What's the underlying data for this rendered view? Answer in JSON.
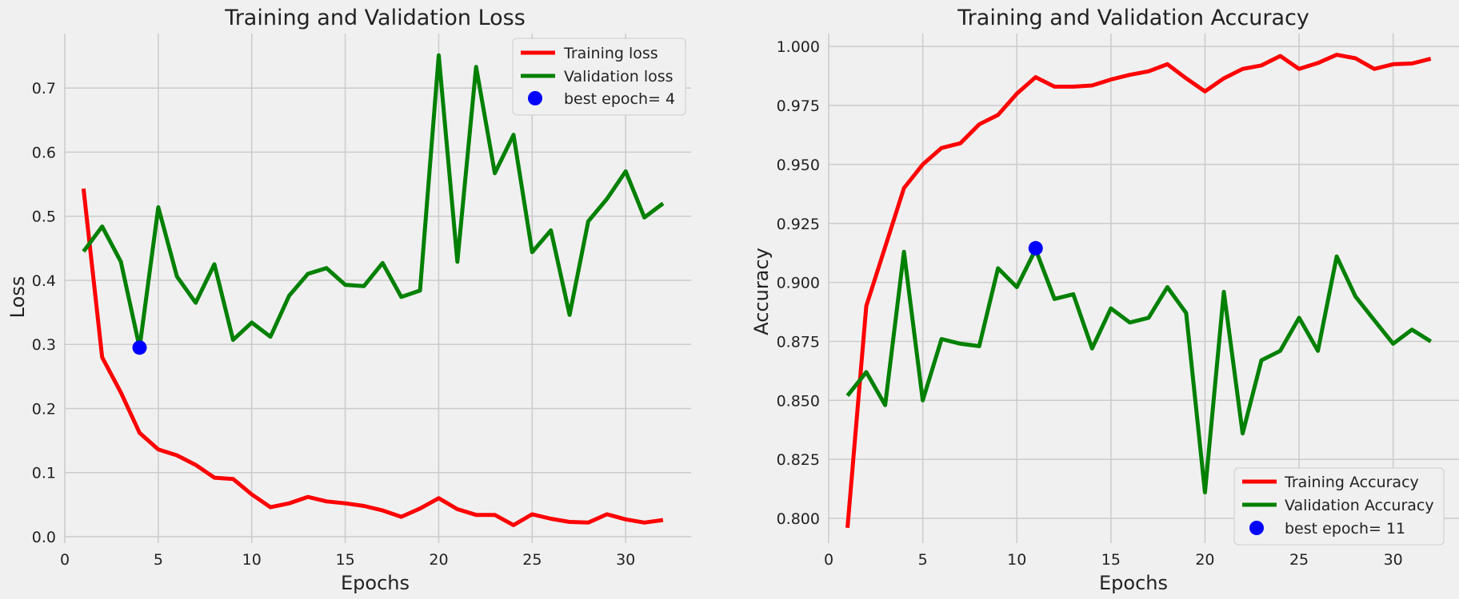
{
  "chart_data": [
    {
      "type": "line",
      "title": "Training and Validation Loss",
      "xlabel": "Epochs",
      "ylabel": "Loss",
      "xlim": [
        0,
        33.5
      ],
      "ylim": [
        -0.01,
        0.785
      ],
      "xticks": [
        0,
        5,
        10,
        15,
        20,
        25,
        30
      ],
      "yticks": [
        0.0,
        0.1,
        0.2,
        0.3,
        0.4,
        0.5,
        0.6,
        0.7
      ],
      "ytick_decimals": 1,
      "grid": true,
      "legend_position": "top-right",
      "x": [
        1,
        2,
        3,
        4,
        5,
        6,
        7,
        8,
        9,
        10,
        11,
        12,
        13,
        14,
        15,
        16,
        17,
        18,
        19,
        20,
        21,
        22,
        23,
        24,
        25,
        26,
        27,
        28,
        29,
        30,
        31,
        32
      ],
      "series": [
        {
          "name": "Training loss",
          "color": "#ff0000",
          "values": [
            0.543,
            0.28,
            0.225,
            0.162,
            0.136,
            0.127,
            0.112,
            0.092,
            0.09,
            0.066,
            0.046,
            0.052,
            0.062,
            0.055,
            0.052,
            0.048,
            0.041,
            0.031,
            0.044,
            0.06,
            0.043,
            0.034,
            0.034,
            0.018,
            0.035,
            0.028,
            0.023,
            0.022,
            0.035,
            0.027,
            0.022,
            0.026
          ]
        },
        {
          "name": "Validation loss",
          "color": "#008000",
          "values": [
            0.445,
            0.484,
            0.429,
            0.295,
            0.514,
            0.406,
            0.365,
            0.425,
            0.307,
            0.334,
            0.312,
            0.376,
            0.41,
            0.419,
            0.393,
            0.391,
            0.427,
            0.374,
            0.384,
            0.751,
            0.429,
            0.733,
            0.567,
            0.627,
            0.444,
            0.478,
            0.346,
            0.492,
            0.527,
            0.57,
            0.498,
            0.52
          ]
        }
      ],
      "best_point": {
        "label": "best epoch= 4",
        "x": 4,
        "y": 0.295,
        "color": "#0000ff"
      }
    },
    {
      "type": "line",
      "title": "Training and Validation Accuracy",
      "xlabel": "Epochs",
      "ylabel": "Accuracy",
      "xlim": [
        0,
        33.5
      ],
      "ylim": [
        0.7895,
        1.0055
      ],
      "xticks": [
        0,
        5,
        10,
        15,
        20,
        25,
        30
      ],
      "yticks": [
        0.8,
        0.825,
        0.85,
        0.875,
        0.9,
        0.925,
        0.95,
        0.975,
        1.0
      ],
      "ytick_decimals": 3,
      "grid": true,
      "legend_position": "bottom-right",
      "x": [
        1,
        2,
        3,
        4,
        5,
        6,
        7,
        8,
        9,
        10,
        11,
        12,
        13,
        14,
        15,
        16,
        17,
        18,
        19,
        20,
        21,
        22,
        23,
        24,
        25,
        26,
        27,
        28,
        29,
        30,
        31,
        32
      ],
      "series": [
        {
          "name": "Training Accuracy",
          "color": "#ff0000",
          "values": [
            0.796,
            0.89,
            0.915,
            0.94,
            0.95,
            0.957,
            0.959,
            0.967,
            0.971,
            0.98,
            0.987,
            0.983,
            0.983,
            0.9835,
            0.986,
            0.988,
            0.9895,
            0.9925,
            0.9865,
            0.981,
            0.9865,
            0.9905,
            0.992,
            0.996,
            0.9905,
            0.993,
            0.9965,
            0.995,
            0.9905,
            0.9925,
            0.9928,
            0.9948
          ]
        },
        {
          "name": "Validation Accuracy",
          "color": "#008000",
          "values": [
            0.852,
            0.862,
            0.848,
            0.913,
            0.85,
            0.876,
            0.874,
            0.873,
            0.906,
            0.898,
            0.914,
            0.893,
            0.895,
            0.872,
            0.889,
            0.883,
            0.885,
            0.898,
            0.887,
            0.811,
            0.896,
            0.836,
            0.867,
            0.871,
            0.885,
            0.871,
            0.911,
            0.894,
            0.884,
            0.874,
            0.88,
            0.875
          ]
        }
      ],
      "best_point": {
        "label": "best epoch= 11",
        "x": 11,
        "y": 0.9145,
        "color": "#0000ff"
      }
    }
  ]
}
